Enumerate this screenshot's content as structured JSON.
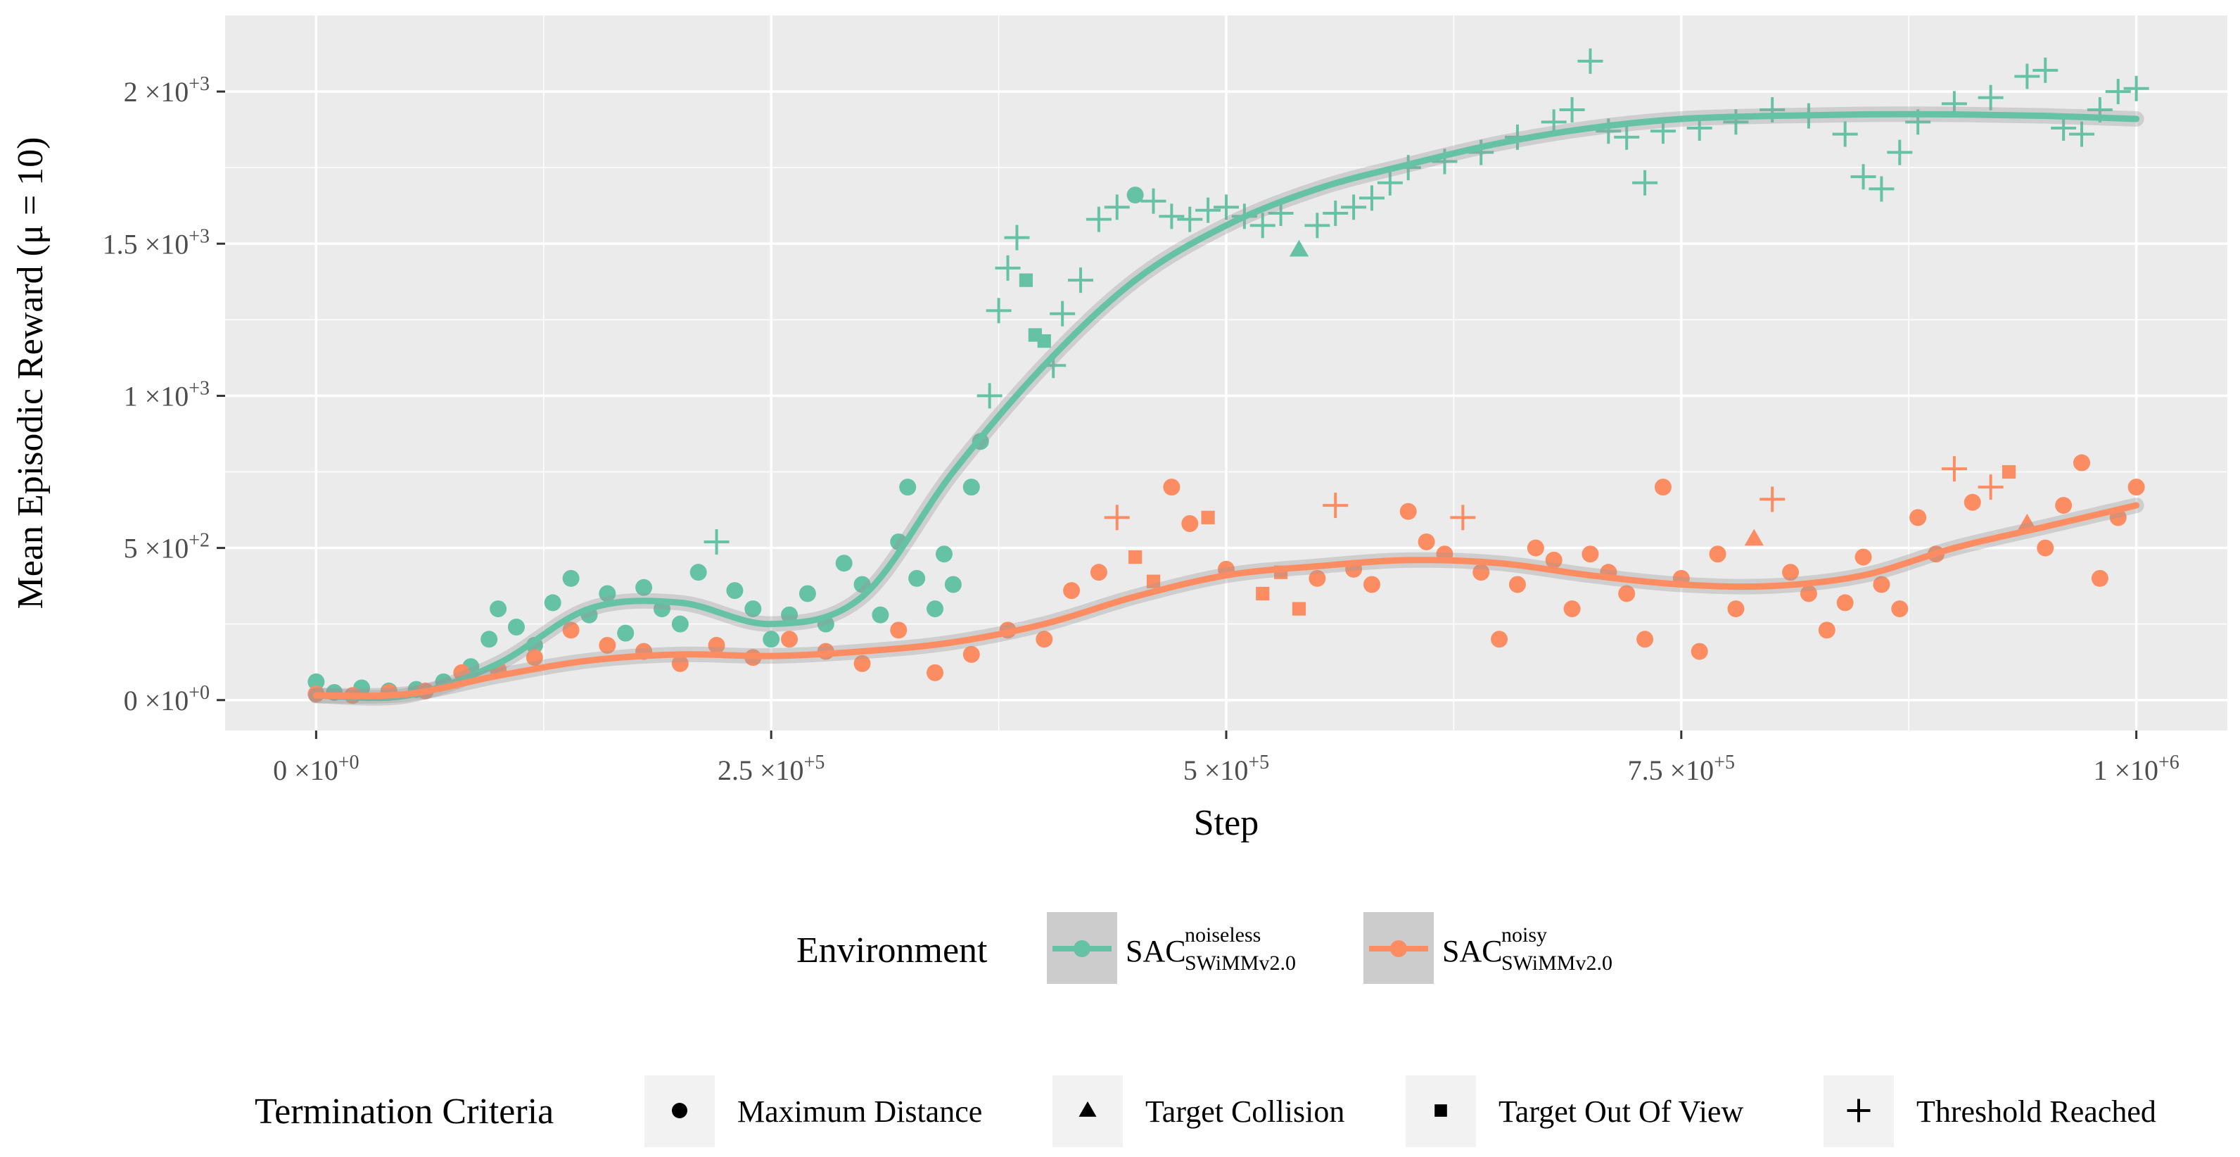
{
  "chart_data": {
    "type": "scatter",
    "xlabel": "Step",
    "ylabel": "Mean Episodic Reward (μ = 10)",
    "xlim": [
      -50000,
      1050000
    ],
    "ylim": [
      -100,
      2250
    ],
    "x_ticks": [
      0,
      250000,
      500000,
      750000,
      1000000
    ],
    "x_tick_labels": [
      {
        "base": "0 ×10",
        "exp": "+0"
      },
      {
        "base": "2.5 ×10",
        "exp": "+5"
      },
      {
        "base": "5 ×10",
        "exp": "+5"
      },
      {
        "base": "7.5 ×10",
        "exp": "+5"
      },
      {
        "base": "1 ×10",
        "exp": "+6"
      }
    ],
    "y_ticks": [
      0,
      500,
      1000,
      1500,
      2000
    ],
    "y_tick_labels": [
      {
        "base": "0 ×10",
        "exp": "+0"
      },
      {
        "base": "5 ×10",
        "exp": "+2"
      },
      {
        "base": "1 ×10",
        "exp": "+3"
      },
      {
        "base": "1.5 ×10",
        "exp": "+3"
      },
      {
        "base": "2 ×10",
        "exp": "+3"
      }
    ],
    "grid": true,
    "series": [
      {
        "name": "SAC noiseless SWiMMv2.0",
        "label_main": "SAC",
        "label_sup": "noiseless",
        "label_sub": "SWiMMv2.0",
        "color": "#66c2a5",
        "smooth": [
          [
            0,
            15
          ],
          [
            50000,
            15
          ],
          [
            100000,
            120
          ],
          [
            150000,
            300
          ],
          [
            200000,
            320
          ],
          [
            250000,
            250
          ],
          [
            300000,
            340
          ],
          [
            350000,
            750
          ],
          [
            400000,
            1100
          ],
          [
            450000,
            1380
          ],
          [
            500000,
            1560
          ],
          [
            550000,
            1680
          ],
          [
            600000,
            1760
          ],
          [
            650000,
            1830
          ],
          [
            700000,
            1880
          ],
          [
            750000,
            1910
          ],
          [
            800000,
            1920
          ],
          [
            850000,
            1925
          ],
          [
            900000,
            1925
          ],
          [
            950000,
            1920
          ],
          [
            1000000,
            1910
          ]
        ],
        "points": [
          [
            0,
            60,
            "circle"
          ],
          [
            10000,
            25,
            "circle"
          ],
          [
            25000,
            40,
            "circle"
          ],
          [
            40000,
            30,
            "circle"
          ],
          [
            55000,
            35,
            "circle"
          ],
          [
            70000,
            60,
            "circle"
          ],
          [
            85000,
            110,
            "circle"
          ],
          [
            95000,
            200,
            "circle"
          ],
          [
            100000,
            300,
            "circle"
          ],
          [
            110000,
            240,
            "circle"
          ],
          [
            120000,
            180,
            "circle"
          ],
          [
            130000,
            320,
            "circle"
          ],
          [
            140000,
            400,
            "circle"
          ],
          [
            150000,
            280,
            "circle"
          ],
          [
            160000,
            350,
            "circle"
          ],
          [
            170000,
            220,
            "circle"
          ],
          [
            180000,
            370,
            "circle"
          ],
          [
            190000,
            300,
            "circle"
          ],
          [
            200000,
            250,
            "circle"
          ],
          [
            210000,
            420,
            "circle"
          ],
          [
            220000,
            520,
            "plus"
          ],
          [
            230000,
            360,
            "circle"
          ],
          [
            240000,
            300,
            "circle"
          ],
          [
            250000,
            200,
            "circle"
          ],
          [
            260000,
            280,
            "circle"
          ],
          [
            270000,
            350,
            "circle"
          ],
          [
            280000,
            250,
            "circle"
          ],
          [
            290000,
            450,
            "circle"
          ],
          [
            300000,
            380,
            "circle"
          ],
          [
            310000,
            280,
            "circle"
          ],
          [
            320000,
            520,
            "circle"
          ],
          [
            325000,
            700,
            "circle"
          ],
          [
            330000,
            400,
            "circle"
          ],
          [
            340000,
            300,
            "circle"
          ],
          [
            345000,
            480,
            "circle"
          ],
          [
            350000,
            380,
            "circle"
          ],
          [
            360000,
            700,
            "circle"
          ],
          [
            365000,
            850,
            "circle"
          ],
          [
            370000,
            1000,
            "plus"
          ],
          [
            375000,
            1280,
            "plus"
          ],
          [
            380000,
            1420,
            "plus"
          ],
          [
            385000,
            1520,
            "plus"
          ],
          [
            390000,
            1380,
            "square"
          ],
          [
            395000,
            1200,
            "square"
          ],
          [
            400000,
            1180,
            "square"
          ],
          [
            405000,
            1100,
            "plus"
          ],
          [
            410000,
            1270,
            "plus"
          ],
          [
            420000,
            1380,
            "plus"
          ],
          [
            430000,
            1580,
            "plus"
          ],
          [
            440000,
            1620,
            "plus"
          ],
          [
            450000,
            1660,
            "circle"
          ],
          [
            460000,
            1640,
            "plus"
          ],
          [
            470000,
            1590,
            "plus"
          ],
          [
            480000,
            1580,
            "plus"
          ],
          [
            490000,
            1610,
            "plus"
          ],
          [
            500000,
            1620,
            "plus"
          ],
          [
            510000,
            1590,
            "plus"
          ],
          [
            520000,
            1560,
            "plus"
          ],
          [
            530000,
            1600,
            "plus"
          ],
          [
            540000,
            1480,
            "triangle"
          ],
          [
            550000,
            1560,
            "plus"
          ],
          [
            560000,
            1600,
            "plus"
          ],
          [
            570000,
            1620,
            "plus"
          ],
          [
            580000,
            1650,
            "plus"
          ],
          [
            590000,
            1700,
            "plus"
          ],
          [
            600000,
            1750,
            "plus"
          ],
          [
            620000,
            1770,
            "plus"
          ],
          [
            640000,
            1800,
            "plus"
          ],
          [
            660000,
            1850,
            "plus"
          ],
          [
            680000,
            1900,
            "plus"
          ],
          [
            690000,
            1940,
            "plus"
          ],
          [
            700000,
            2100,
            "plus"
          ],
          [
            710000,
            1870,
            "plus"
          ],
          [
            720000,
            1850,
            "plus"
          ],
          [
            730000,
            1700,
            "plus"
          ],
          [
            740000,
            1870,
            "plus"
          ],
          [
            760000,
            1880,
            "plus"
          ],
          [
            780000,
            1900,
            "plus"
          ],
          [
            800000,
            1940,
            "plus"
          ],
          [
            820000,
            1920,
            "plus"
          ],
          [
            840000,
            1860,
            "plus"
          ],
          [
            850000,
            1720,
            "plus"
          ],
          [
            860000,
            1680,
            "plus"
          ],
          [
            870000,
            1800,
            "plus"
          ],
          [
            880000,
            1900,
            "plus"
          ],
          [
            900000,
            1960,
            "plus"
          ],
          [
            920000,
            1980,
            "plus"
          ],
          [
            940000,
            2050,
            "plus"
          ],
          [
            950000,
            2070,
            "plus"
          ],
          [
            960000,
            1880,
            "plus"
          ],
          [
            970000,
            1860,
            "plus"
          ],
          [
            980000,
            1940,
            "plus"
          ],
          [
            990000,
            2000,
            "plus"
          ],
          [
            1000000,
            2010,
            "plus"
          ]
        ]
      },
      {
        "name": "SAC noisy SWiMMv2.0",
        "label_main": "SAC",
        "label_sup": "noisy",
        "label_sub": "SWiMMv2.0",
        "color": "#fc8d62",
        "smooth": [
          [
            0,
            15
          ],
          [
            50000,
            20
          ],
          [
            100000,
            80
          ],
          [
            150000,
            130
          ],
          [
            200000,
            150
          ],
          [
            250000,
            145
          ],
          [
            300000,
            160
          ],
          [
            350000,
            190
          ],
          [
            400000,
            250
          ],
          [
            450000,
            340
          ],
          [
            500000,
            410
          ],
          [
            550000,
            440
          ],
          [
            600000,
            460
          ],
          [
            650000,
            450
          ],
          [
            700000,
            410
          ],
          [
            750000,
            380
          ],
          [
            800000,
            375
          ],
          [
            850000,
            410
          ],
          [
            900000,
            500
          ],
          [
            950000,
            570
          ],
          [
            1000000,
            640
          ]
        ],
        "points": [
          [
            0,
            20,
            "circle"
          ],
          [
            20000,
            15,
            "circle"
          ],
          [
            40000,
            25,
            "circle"
          ],
          [
            60000,
            30,
            "circle"
          ],
          [
            80000,
            90,
            "circle"
          ],
          [
            100000,
            100,
            "circle"
          ],
          [
            120000,
            140,
            "circle"
          ],
          [
            140000,
            230,
            "circle"
          ],
          [
            160000,
            180,
            "circle"
          ],
          [
            180000,
            160,
            "circle"
          ],
          [
            200000,
            120,
            "circle"
          ],
          [
            220000,
            180,
            "circle"
          ],
          [
            240000,
            140,
            "circle"
          ],
          [
            260000,
            200,
            "circle"
          ],
          [
            280000,
            160,
            "circle"
          ],
          [
            300000,
            120,
            "circle"
          ],
          [
            320000,
            230,
            "circle"
          ],
          [
            340000,
            90,
            "circle"
          ],
          [
            360000,
            150,
            "circle"
          ],
          [
            380000,
            230,
            "circle"
          ],
          [
            400000,
            200,
            "circle"
          ],
          [
            415000,
            360,
            "circle"
          ],
          [
            430000,
            420,
            "circle"
          ],
          [
            440000,
            600,
            "plus"
          ],
          [
            450000,
            470,
            "square"
          ],
          [
            460000,
            390,
            "square"
          ],
          [
            470000,
            700,
            "circle"
          ],
          [
            480000,
            580,
            "circle"
          ],
          [
            490000,
            600,
            "square"
          ],
          [
            500000,
            430,
            "circle"
          ],
          [
            520000,
            350,
            "square"
          ],
          [
            530000,
            420,
            "square"
          ],
          [
            540000,
            300,
            "square"
          ],
          [
            550000,
            400,
            "circle"
          ],
          [
            560000,
            640,
            "plus"
          ],
          [
            570000,
            430,
            "circle"
          ],
          [
            580000,
            380,
            "circle"
          ],
          [
            600000,
            620,
            "circle"
          ],
          [
            610000,
            520,
            "circle"
          ],
          [
            620000,
            480,
            "circle"
          ],
          [
            630000,
            600,
            "plus"
          ],
          [
            640000,
            420,
            "circle"
          ],
          [
            650000,
            200,
            "circle"
          ],
          [
            660000,
            380,
            "circle"
          ],
          [
            670000,
            500,
            "circle"
          ],
          [
            680000,
            460,
            "circle"
          ],
          [
            690000,
            300,
            "circle"
          ],
          [
            700000,
            480,
            "circle"
          ],
          [
            710000,
            420,
            "circle"
          ],
          [
            720000,
            350,
            "circle"
          ],
          [
            730000,
            200,
            "circle"
          ],
          [
            740000,
            700,
            "circle"
          ],
          [
            750000,
            400,
            "circle"
          ],
          [
            760000,
            160,
            "circle"
          ],
          [
            770000,
            480,
            "circle"
          ],
          [
            780000,
            300,
            "circle"
          ],
          [
            790000,
            530,
            "triangle"
          ],
          [
            800000,
            660,
            "plus"
          ],
          [
            810000,
            420,
            "circle"
          ],
          [
            820000,
            350,
            "circle"
          ],
          [
            830000,
            230,
            "circle"
          ],
          [
            840000,
            320,
            "circle"
          ],
          [
            850000,
            470,
            "circle"
          ],
          [
            860000,
            380,
            "circle"
          ],
          [
            870000,
            300,
            "circle"
          ],
          [
            880000,
            600,
            "circle"
          ],
          [
            890000,
            480,
            "circle"
          ],
          [
            900000,
            760,
            "plus"
          ],
          [
            910000,
            650,
            "circle"
          ],
          [
            920000,
            700,
            "plus"
          ],
          [
            930000,
            750,
            "square"
          ],
          [
            940000,
            580,
            "triangle"
          ],
          [
            950000,
            500,
            "circle"
          ],
          [
            960000,
            640,
            "circle"
          ],
          [
            970000,
            780,
            "circle"
          ],
          [
            980000,
            400,
            "circle"
          ],
          [
            990000,
            600,
            "circle"
          ],
          [
            1000000,
            700,
            "circle"
          ]
        ]
      }
    ],
    "legends": [
      {
        "title": "Environment",
        "entries": [
          "SAC noiseless SWiMMv2.0",
          "SAC noisy SWiMMv2.0"
        ]
      },
      {
        "title": "Termination Criteria",
        "entries": [
          {
            "label": "Maximum Distance",
            "shape": "circle"
          },
          {
            "label": "Target Collision",
            "shape": "triangle"
          },
          {
            "label": "Target Out Of View",
            "shape": "square"
          },
          {
            "label": "Threshold Reached",
            "shape": "plus"
          }
        ]
      }
    ]
  }
}
